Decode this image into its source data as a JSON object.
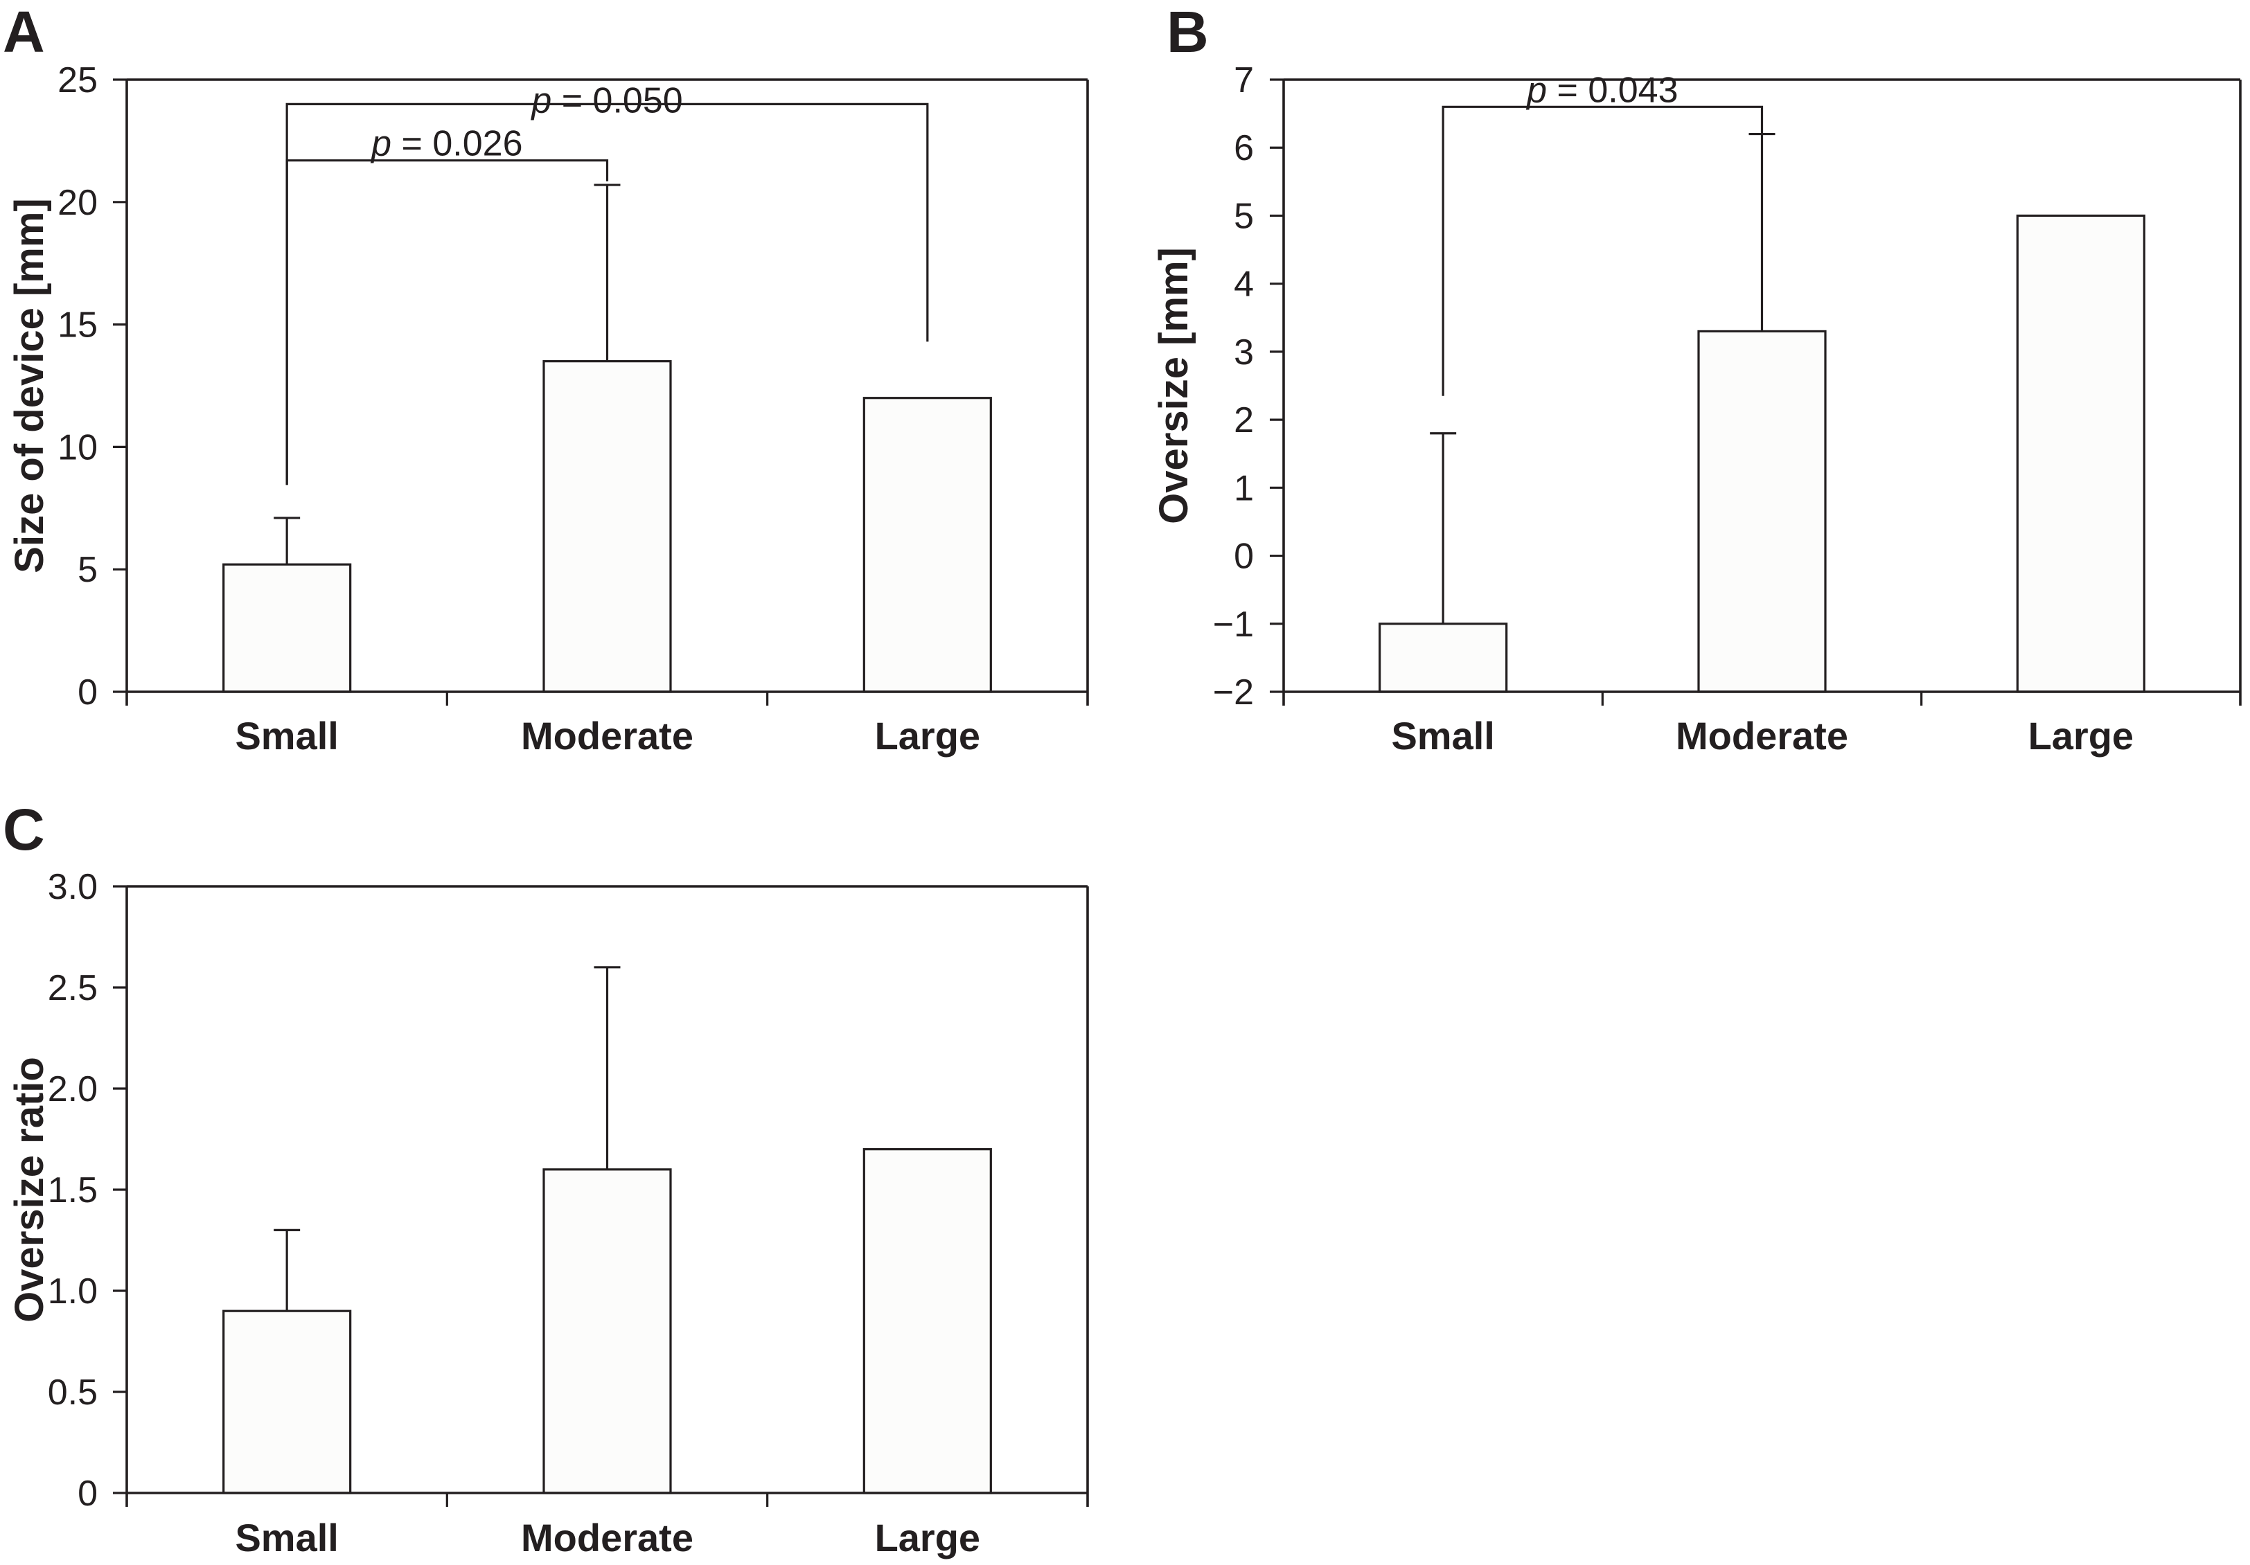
{
  "figure": {
    "background": "#ffffff",
    "ink_color": "#231f20",
    "bar_fill": "#fcfcfb"
  },
  "chart_data": [
    {
      "id": "A",
      "type": "bar",
      "panel_label": "A",
      "title": "",
      "xlabel": "",
      "ylabel": "Size of device [mm]",
      "categories": [
        "Small",
        "Moderate",
        "Large"
      ],
      "values": [
        5.2,
        13.5,
        12.0
      ],
      "error_top": [
        7.1,
        20.7,
        null
      ],
      "ylim": [
        0,
        25
      ],
      "grid": false,
      "legend": "none",
      "yticks": [
        {
          "v": 0,
          "label": "0"
        },
        {
          "v": 5,
          "label": "5"
        },
        {
          "v": 10,
          "label": "10"
        },
        {
          "v": 15,
          "label": "15"
        },
        {
          "v": 20,
          "label": "20"
        },
        {
          "v": 25,
          "label": "25"
        }
      ],
      "brackets": [
        {
          "label": "p = 0.026",
          "y": 21.7,
          "from": 0,
          "to": 1,
          "tail_from": 8.45,
          "tail_to": 20.85,
          "label_dy": -7
        },
        {
          "label": "p = 0.050",
          "y": 24.0,
          "from": 0,
          "to": 2,
          "tail_from": 8.45,
          "tail_to": 14.3,
          "label_dy": 12
        }
      ]
    },
    {
      "id": "B",
      "type": "bar",
      "panel_label": "B",
      "title": "",
      "xlabel": "",
      "ylabel": "Oversize [mm]",
      "categories": [
        "Small",
        "Moderate",
        "Large"
      ],
      "values": [
        -1.0,
        3.3,
        5.0
      ],
      "error_top": [
        1.8,
        6.2,
        null
      ],
      "ylim": [
        -2,
        7
      ],
      "grid": false,
      "legend": "none",
      "yticks": [
        {
          "v": -2,
          "label": "−2"
        },
        {
          "v": -1,
          "label": "−1"
        },
        {
          "v": 0,
          "label": "0"
        },
        {
          "v": 1,
          "label": "1"
        },
        {
          "v": 2,
          "label": "2"
        },
        {
          "v": 3,
          "label": "3"
        },
        {
          "v": 4,
          "label": "4"
        },
        {
          "v": 5,
          "label": "5"
        },
        {
          "v": 6,
          "label": "6"
        },
        {
          "v": 7,
          "label": "7"
        }
      ],
      "brackets": [
        {
          "label": "p = 0.043",
          "y": 6.6,
          "from": 0,
          "to": 1,
          "tail_from": 2.35,
          "tail_to": 6.2,
          "label_dy": 0
        }
      ]
    },
    {
      "id": "C",
      "type": "bar",
      "panel_label": "C",
      "title": "",
      "xlabel": "",
      "ylabel": "Oversize ratio",
      "categories": [
        "Small",
        "Moderate",
        "Large"
      ],
      "values": [
        0.9,
        1.6,
        1.7
      ],
      "error_top": [
        1.3,
        2.6,
        null
      ],
      "ylim": [
        0,
        3
      ],
      "grid": false,
      "legend": "none",
      "yticks": [
        {
          "v": 0,
          "label": "0"
        },
        {
          "v": 0.5,
          "label": "0.5"
        },
        {
          "v": 1,
          "label": "1.0"
        },
        {
          "v": 1.5,
          "label": "1.5"
        },
        {
          "v": 2,
          "label": "2.0"
        },
        {
          "v": 2.5,
          "label": "2.5"
        },
        {
          "v": 3,
          "label": "3.0"
        }
      ],
      "brackets": []
    }
  ]
}
